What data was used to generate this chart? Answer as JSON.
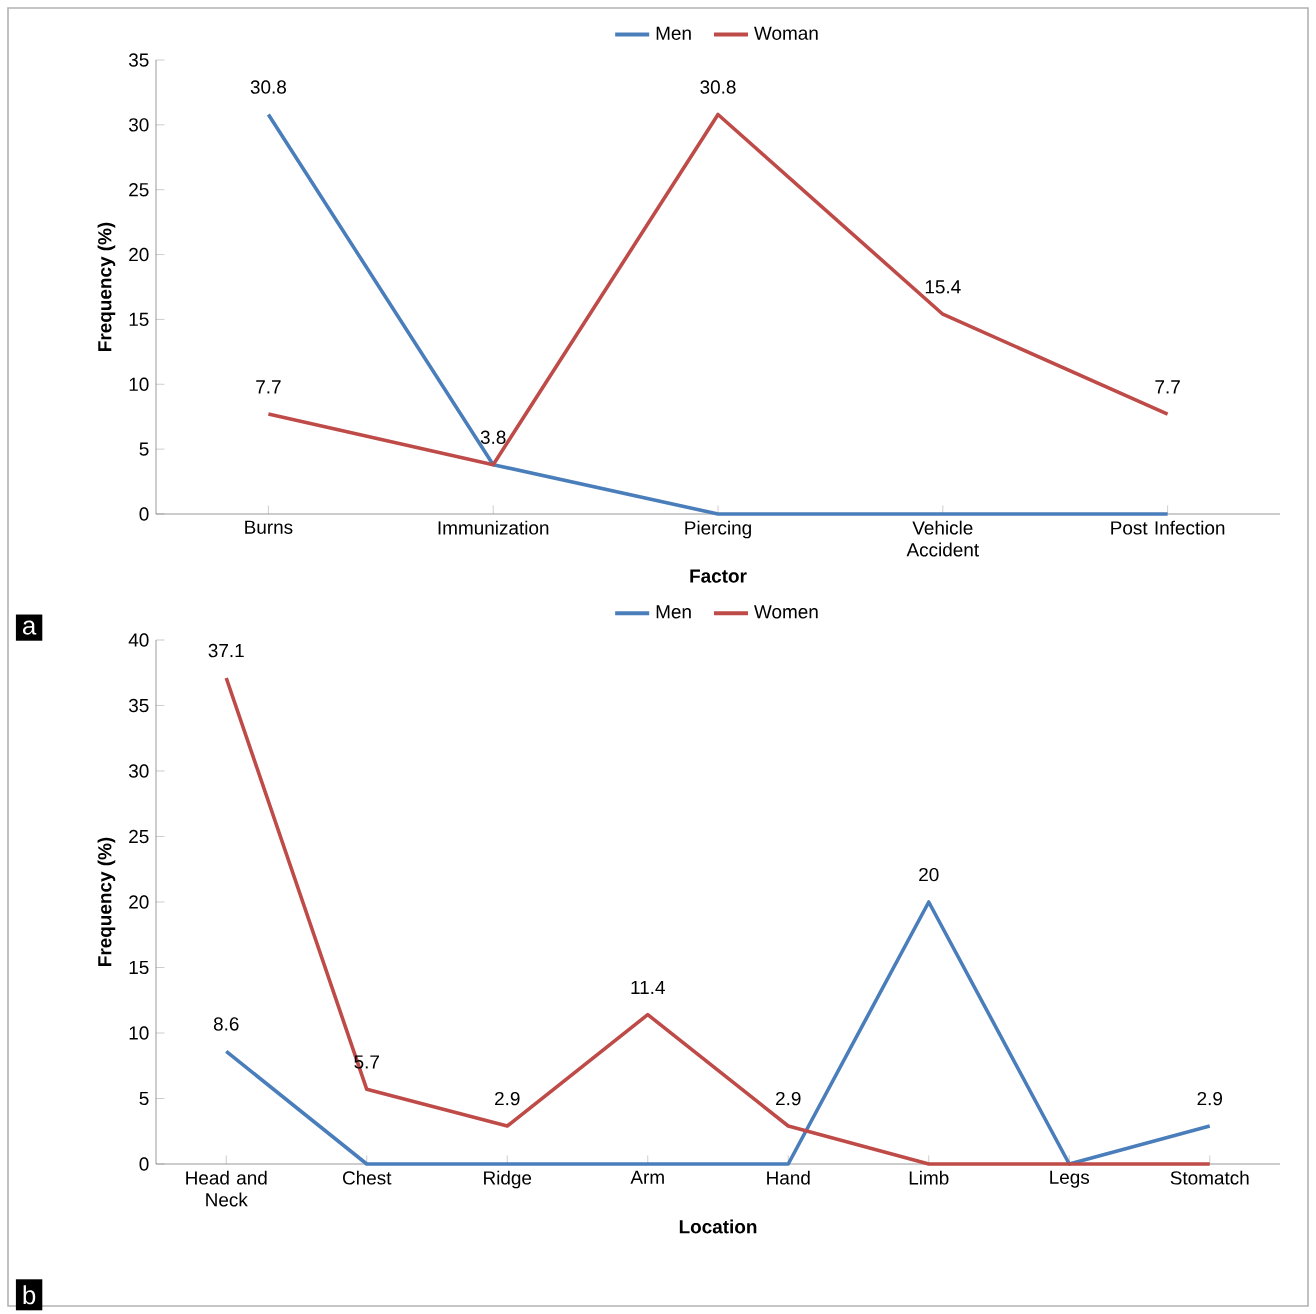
{
  "chart_data": [
    {
      "type": "line",
      "categories": [
        "Burns",
        "Immunization",
        "Piercing",
        "Vehicle Accident",
        "Post Infection"
      ],
      "xlabel": "Factor",
      "ylabel": "Frequency (%)",
      "ylim": [
        0,
        35
      ],
      "yticks": [
        0,
        5,
        10,
        15,
        20,
        25,
        30,
        35
      ],
      "legend": "top",
      "line_style": "solid",
      "annotations": [
        "a"
      ],
      "series": [
        {
          "name": "Men",
          "color": "#4a7ebb",
          "values": [
            30.8,
            3.8,
            0,
            0,
            0
          ],
          "value_labels": [
            "30.8",
            "3.8",
            null,
            null,
            null
          ]
        },
        {
          "name": "Woman",
          "color": "#be4b48",
          "values": [
            7.7,
            3.8,
            30.8,
            15.4,
            7.7
          ],
          "value_labels": [
            "7.7",
            null,
            "30.8",
            "15.4",
            "7.7"
          ]
        }
      ]
    },
    {
      "type": "line",
      "categories": [
        "Head and Neck",
        "Chest",
        "Ridge",
        "Arm",
        "Hand",
        "Limb",
        "Legs",
        "Stomatch"
      ],
      "xlabel": "Location",
      "ylabel": "Frequency (%)",
      "ylim": [
        0,
        40
      ],
      "yticks": [
        0,
        5,
        10,
        15,
        20,
        25,
        30,
        35,
        40
      ],
      "legend": "top",
      "line_style": "solid",
      "annotations": [
        "b"
      ],
      "series": [
        {
          "name": "Men",
          "color": "#4a7ebb",
          "values": [
            8.6,
            0,
            0,
            0,
            0,
            20,
            0,
            2.9
          ],
          "value_labels": [
            "8.6",
            null,
            null,
            null,
            null,
            "20",
            null,
            "2.9"
          ]
        },
        {
          "name": "Women",
          "color": "#be4b48",
          "values": [
            37.1,
            5.7,
            2.9,
            11.4,
            2.9,
            0,
            0,
            0
          ],
          "value_labels": [
            "37.1",
            "5.7",
            "2.9",
            "11.4",
            "2.9",
            null,
            null,
            null
          ]
        }
      ]
    }
  ]
}
